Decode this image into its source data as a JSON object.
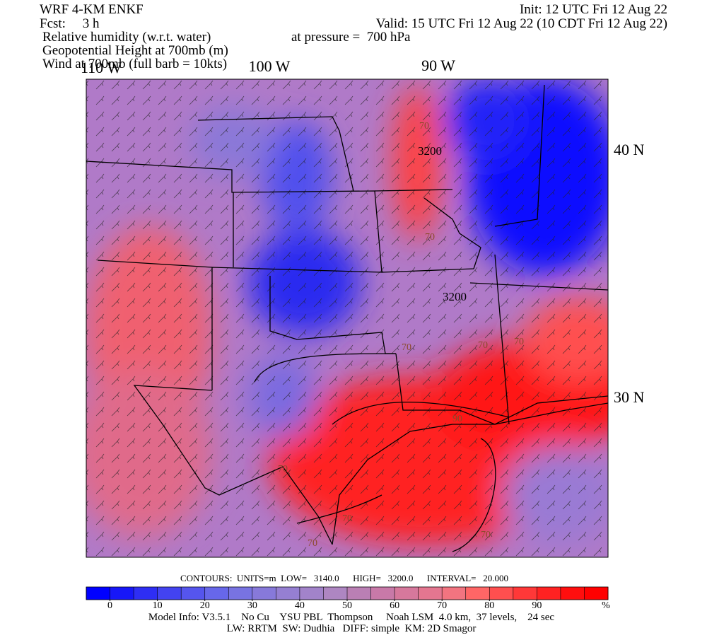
{
  "header": {
    "model": "WRF 4-KM ENKF",
    "forecast": "Fcst:     3 h",
    "init": "Init: 12 UTC Fri 12 Aug 22",
    "valid": "Valid: 15 UTC Fri 12 Aug 22 (10 CDT Fri 12 Aug 22)",
    "field1": "Relative humidity (w.r.t. water)",
    "pressure": "at pressure =  700 hPa",
    "field2": "Geopotential Height at 700mb (m)",
    "field3": "Wind at 700mb (full barb = 10kts)"
  },
  "map": {
    "longitudes": [
      "110 W",
      "100 W",
      "90 W"
    ],
    "latitudes": [
      "40 N",
      "30 N"
    ],
    "contour_labels": [
      "70",
      "3200",
      "70",
      "3200",
      "70",
      "70",
      "70",
      "90",
      "70",
      "70",
      "70",
      "70"
    ]
  },
  "colorbar": {
    "lim": [
      -5,
      105
    ],
    "ticks": [
      0,
      10,
      20,
      30,
      40,
      50,
      60,
      70,
      80,
      90
    ],
    "unit": "%",
    "colors": [
      "#0000ff",
      "#1717f8",
      "#2e2ef4",
      "#4343f0",
      "#5555ee",
      "#6767ea",
      "#7873e2",
      "#8779da",
      "#957fd2",
      "#a283ca",
      "#ae86c2",
      "#ba7fb4",
      "#c879a8",
      "#d6789c",
      "#e47690",
      "#f27480",
      "#ff6666",
      "#ff4f4f",
      "#ff3838",
      "#ff2222",
      "#ff0e0e",
      "#ff0000"
    ]
  },
  "footer": {
    "contours": "CONTOURS:  UNITS=m  LOW=   3140.0      HIGH=   3200.0      INTERVAL=   20.000",
    "model_info": "Model Info: V3.5.1    No Cu    YSU PBL  Thompson     Noah LSM  4.0 km,  37 levels,    24 sec",
    "physics": "LW: RRTM  SW: Dudhia   DIFF: simple  KM: 2D Smagor"
  }
}
